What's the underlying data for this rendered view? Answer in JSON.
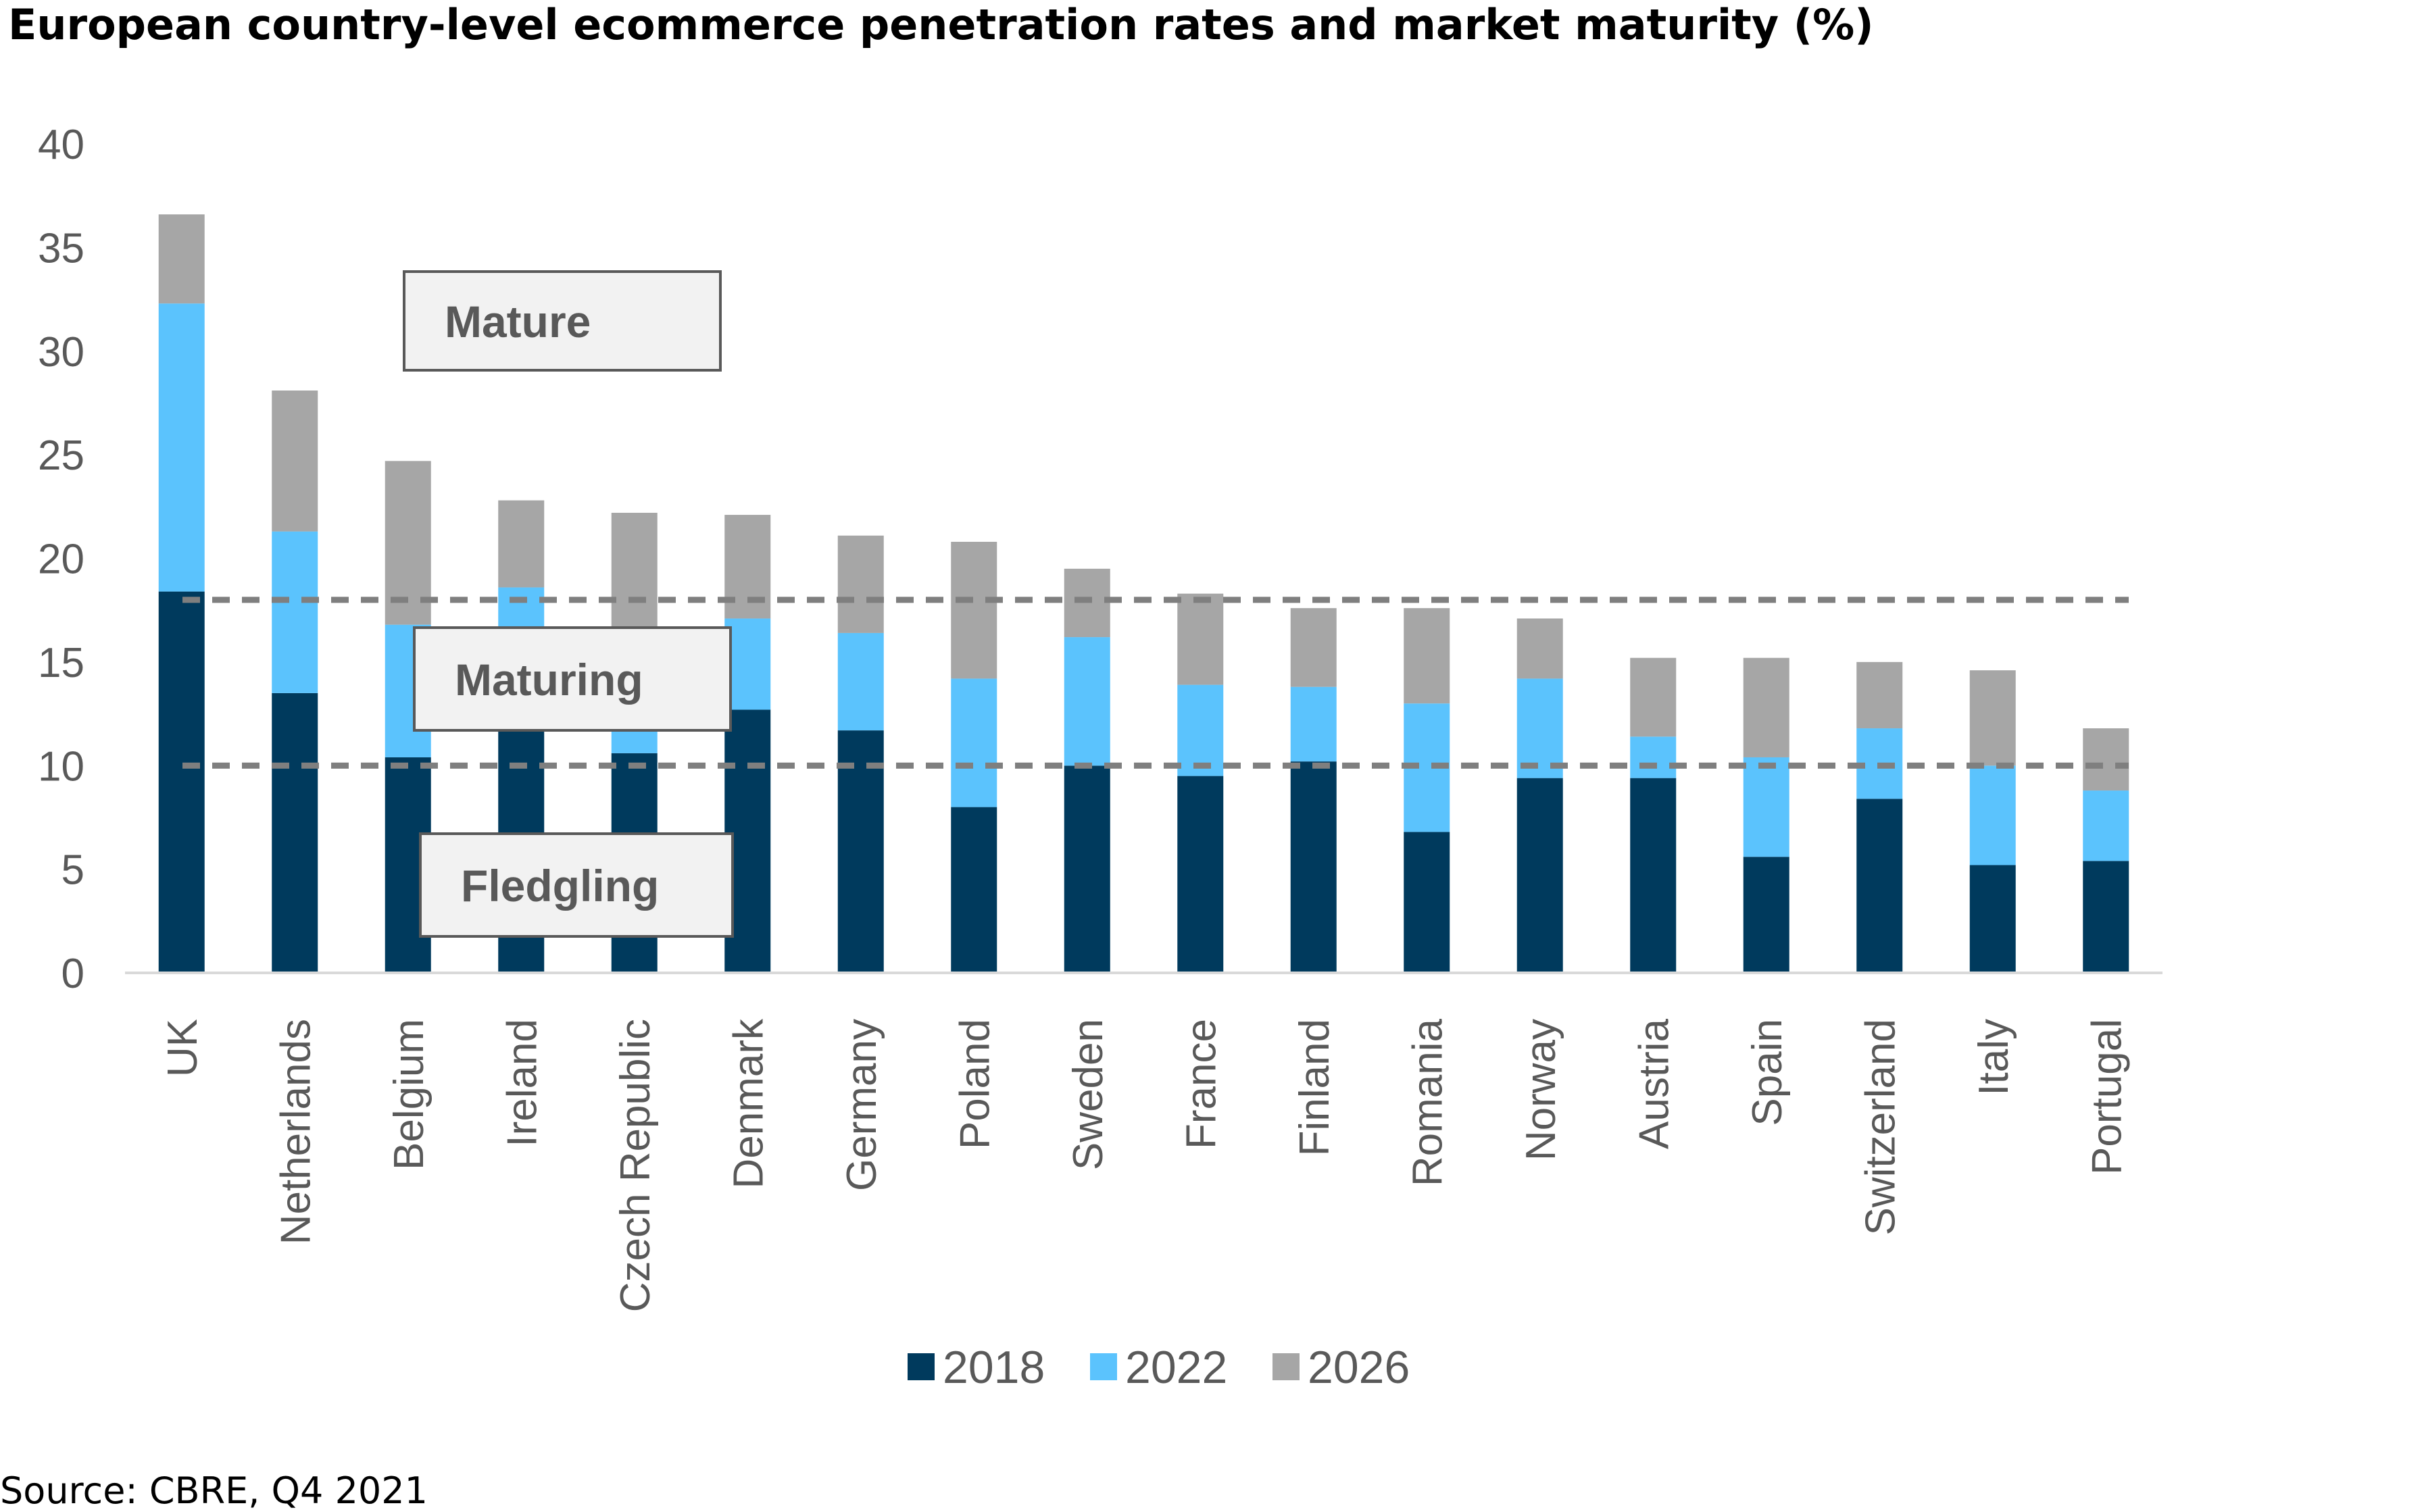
{
  "title": "European country-level ecommerce penetration rates and market maturity (%)",
  "source": "Source: CBRE, Q4 2021",
  "chart_data": {
    "type": "bar",
    "stacked": true,
    "categories": [
      "UK",
      "Netherlands",
      "Belgium",
      "Ireland",
      "Czech Republic",
      "Denmark",
      "Germany",
      "Poland",
      "Sweden",
      "France",
      "Finland",
      "Romania",
      "Norway",
      "Austria",
      "Spain",
      "Switzerland",
      "Italy",
      "Portugal"
    ],
    "series": [
      {
        "name": "2018",
        "color": "#003a5d",
        "values": [
          18.4,
          13.5,
          10.4,
          12.0,
          10.6,
          12.7,
          11.7,
          8.0,
          10.0,
          9.5,
          10.2,
          6.8,
          9.4,
          9.4,
          5.6,
          8.4,
          5.2,
          5.4
        ]
      },
      {
        "name": "2022",
        "color": "#5bc3fd",
        "values": [
          13.9,
          7.8,
          6.4,
          6.6,
          1.7,
          4.4,
          4.7,
          6.2,
          6.2,
          4.4,
          3.6,
          6.2,
          4.8,
          2.0,
          4.8,
          3.4,
          4.8,
          3.4
        ]
      },
      {
        "name": "2026",
        "color": "#a6a6a6",
        "values": [
          4.3,
          6.8,
          7.9,
          4.2,
          9.9,
          5.0,
          4.7,
          6.6,
          3.3,
          4.4,
          3.8,
          4.6,
          2.9,
          3.8,
          4.8,
          3.2,
          4.6,
          3.0
        ]
      }
    ],
    "ylim": [
      0,
      40
    ],
    "yticks": [
      0,
      5,
      10,
      15,
      20,
      25,
      30,
      35,
      40
    ],
    "thresholds": [
      18,
      10
    ],
    "zones": [
      "Mature",
      "Maturing",
      "Fledgling"
    ],
    "legend_position": "bottom",
    "grid": false
  }
}
